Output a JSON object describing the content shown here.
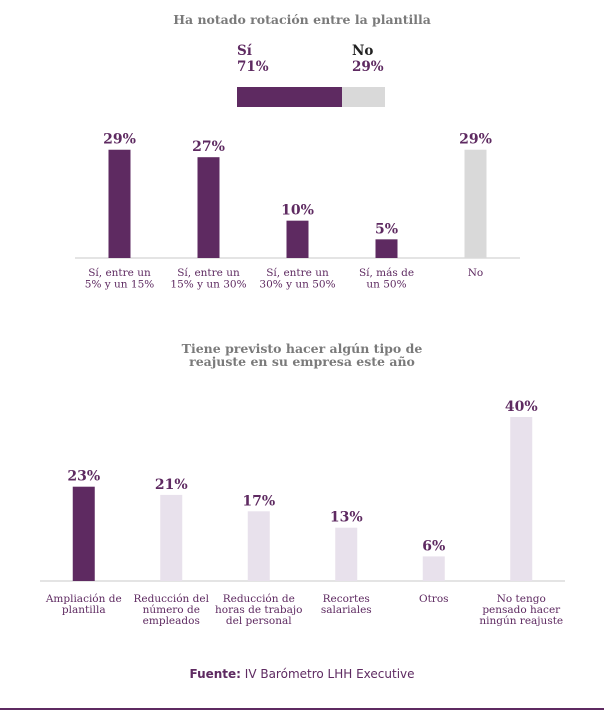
{
  "colors": {
    "accent": "#5e2a61",
    "light_gray": "#d9d9d9",
    "light_purple": "#e8e1ec",
    "axis": "#c8c8c8"
  },
  "summary": {
    "yes_label": "Sí",
    "yes_value": "71%",
    "no_label": "No",
    "no_value": "29%",
    "yes_share": 0.71
  },
  "chart_data": [
    {
      "type": "bar",
      "title": "Ha notado rotación entre la plantilla",
      "categories": [
        [
          "Sí, entre un",
          "5% y un 15%"
        ],
        [
          "Sí, entre un",
          "15% y un 30%"
        ],
        [
          "Sí, entre un",
          "30% y un 50%"
        ],
        [
          "Sí, más de",
          "un 50%"
        ],
        [
          "No"
        ]
      ],
      "values": [
        29,
        27,
        10,
        5,
        29
      ],
      "value_labels": [
        "29%",
        "27%",
        "10%",
        "5%",
        "29%"
      ],
      "bar_colors": [
        "#5e2a61",
        "#5e2a61",
        "#5e2a61",
        "#5e2a61",
        "#d9d9d9"
      ],
      "ylim": [
        0,
        30
      ]
    },
    {
      "type": "bar",
      "title": [
        "Tiene previsto hacer algún tipo de",
        "reajuste en su empresa este año"
      ],
      "categories": [
        [
          "Ampliación de",
          "plantilla"
        ],
        [
          "Reducción del",
          "número de",
          "empleados"
        ],
        [
          "Reducción de",
          "horas de trabajo",
          "del personal"
        ],
        [
          "Recortes",
          "salariales"
        ],
        [
          "Otros"
        ],
        [
          "No tengo",
          "pensado hacer",
          "ningún reajuste"
        ]
      ],
      "values": [
        23,
        21,
        17,
        13,
        6,
        40
      ],
      "value_labels": [
        "23%",
        "21%",
        "17%",
        "13%",
        "6%",
        "40%"
      ],
      "bar_colors": [
        "#5e2a61",
        "#e8e1ec",
        "#e8e1ec",
        "#e8e1ec",
        "#e8e1ec",
        "#e8e1ec"
      ],
      "ylim": [
        0,
        40
      ]
    }
  ],
  "source": {
    "label": "Fuente:",
    "text": " IV Barómetro LHH Executive"
  }
}
